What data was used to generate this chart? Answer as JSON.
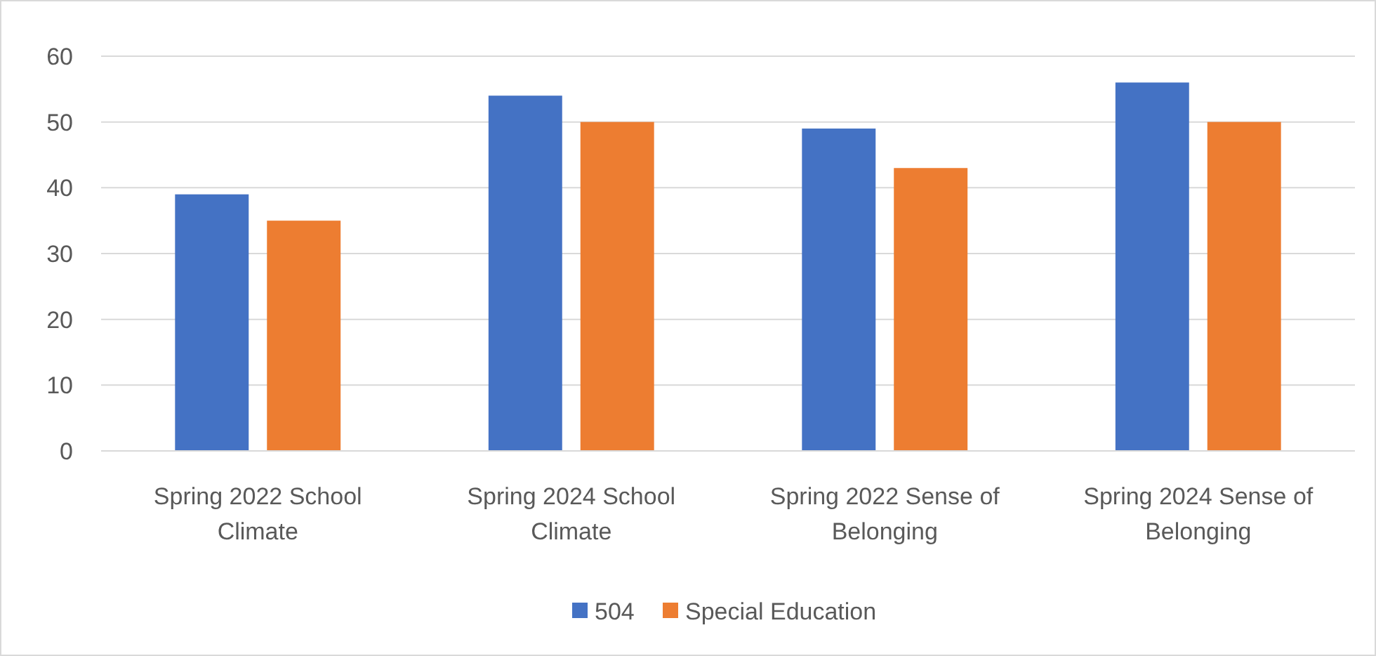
{
  "chart_data": {
    "type": "bar",
    "categories": [
      "Spring 2022 School Climate",
      "Spring 2024 School Climate",
      "Spring 2022 Sense of Belonging",
      "Spring 2024 Sense of Belonging"
    ],
    "series": [
      {
        "name": "504",
        "color": "#4472c4",
        "values": [
          39,
          54,
          49,
          56
        ]
      },
      {
        "name": "Special Education",
        "color": "#ed7d31",
        "values": [
          35,
          50,
          43,
          50
        ]
      }
    ],
    "ylim": [
      0,
      60
    ],
    "yticks": [
      0,
      10,
      20,
      30,
      40,
      50,
      60
    ],
    "grid": "y",
    "legend": "bottom"
  }
}
